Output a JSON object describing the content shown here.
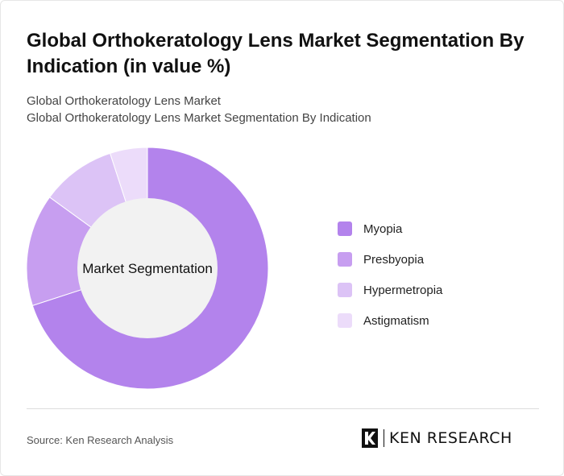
{
  "header": {
    "title": "Global Orthokeratology Lens Market Segmentation By Indication (in value %)",
    "subtitle_line1": "Global Orthokeratology Lens Market",
    "subtitle_line2": "Global Orthokeratology Lens Market Segmentation By Indication"
  },
  "chart_data": {
    "type": "pie",
    "subtype": "donut",
    "center_label": "Market Segmentation",
    "categories": [
      "Myopia",
      "Presbyopia",
      "Hypermetropia",
      "Astigmatism"
    ],
    "values": [
      70,
      15,
      10,
      5
    ],
    "colors": [
      "#b383ec",
      "#c79ef0",
      "#dcc3f6",
      "#ecdcfa"
    ],
    "center_color": "#f2f2f2",
    "legend_position": "right"
  },
  "footer": {
    "source": "Source: Ken Research Analysis",
    "brand": "KEN RESEARCH"
  }
}
